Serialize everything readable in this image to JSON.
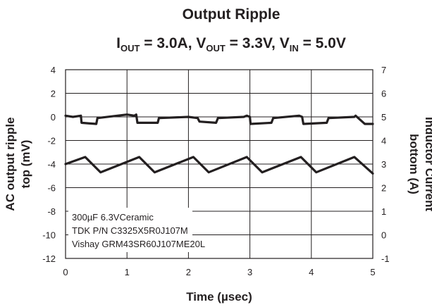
{
  "chart_data": {
    "type": "line",
    "title": "Output Ripple",
    "subtitle": {
      "iout_main": "I",
      "iout_sub": "OUT",
      "iout_val": " = 3.0A, ",
      "vout_main": "V",
      "vout_sub": "OUT",
      "vout_val": " = 3.3V, ",
      "vin_main": "V",
      "vin_sub": "IN",
      "vin_val": " = 5.0V"
    },
    "xlabel": "Time (µsec)",
    "ylabel_left": [
      "AC output ripple",
      "top (mV)"
    ],
    "ylabel_right": [
      "Inductor Current",
      "bottom (A)"
    ],
    "xlim": [
      0,
      5
    ],
    "ylim_left": [
      -12,
      4
    ],
    "ylim_right": [
      -1,
      7
    ],
    "xticks": [
      "0",
      "1",
      "2",
      "3",
      "4",
      "5"
    ],
    "yticks_left": [
      "4",
      "2",
      "0",
      "-2",
      "-4",
      "-6",
      "-8",
      "-10",
      "-12"
    ],
    "yticks_right": [
      "7",
      "6",
      "5",
      "4",
      "3",
      "2",
      "1",
      "0",
      "-1"
    ],
    "grid": true,
    "annotation": [
      "300µF 6.3VCeramic",
      "TDK P/N C3325X5R0J107M",
      "Vishay GRM43SR60J107ME20L"
    ],
    "series": [
      {
        "axis": "left",
        "color": "#231f20",
        "x": [
          0,
          0.12,
          0.25,
          0.26,
          0.5,
          0.52,
          1.0,
          1.12,
          1.15,
          1.17,
          1.5,
          1.52,
          2.0,
          2.15,
          2.18,
          2.45,
          2.48,
          2.9,
          2.95,
          3.0,
          3.01,
          3.35,
          3.38,
          3.8,
          3.85,
          3.87,
          4.25,
          4.28,
          4.7,
          4.72,
          4.85,
          4.87,
          5.0
        ],
        "values": [
          0.1,
          0.0,
          0.1,
          -0.5,
          -0.6,
          -0.1,
          0.2,
          0.1,
          0.2,
          -0.5,
          -0.5,
          -0.1,
          0.0,
          -0.1,
          -0.4,
          -0.5,
          -0.1,
          0.0,
          0.1,
          0.0,
          -0.6,
          -0.5,
          -0.1,
          0.1,
          0.0,
          -0.6,
          -0.5,
          -0.1,
          0.0,
          0.1,
          -0.5,
          -0.6,
          -0.6
        ]
      },
      {
        "axis": "right",
        "color": "#231f20",
        "x": [
          0,
          0.32,
          0.57,
          1.2,
          1.45,
          2.08,
          2.33,
          2.95,
          3.2,
          3.83,
          4.08,
          4.7,
          5.0
        ],
        "values": [
          3.0,
          3.3,
          2.65,
          3.3,
          2.65,
          3.3,
          2.65,
          3.3,
          2.65,
          3.3,
          2.65,
          3.3,
          2.6
        ]
      }
    ]
  }
}
